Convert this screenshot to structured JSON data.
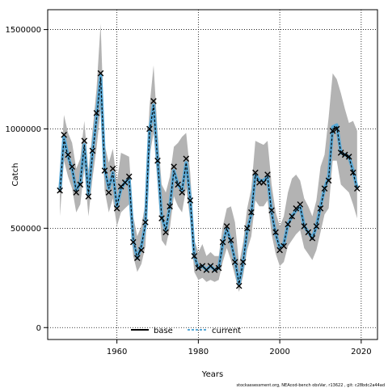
{
  "chart_data": {
    "type": "line",
    "title": "",
    "xlabel": "Years",
    "ylabel": "Catch",
    "xlim": [
      1943,
      2024
    ],
    "ylim": [
      -60000,
      1600000
    ],
    "x_ticks": [
      1960,
      1980,
      2000,
      2020
    ],
    "y_ticks": [
      0,
      500000,
      1000000,
      1500000
    ],
    "y_tick_labels": [
      "0",
      "500000",
      "1000000",
      "1500000"
    ],
    "grid": true,
    "legend": {
      "position": "bottom-center",
      "entries": [
        {
          "label": "base",
          "color": "#000000",
          "style": "solid"
        },
        {
          "label": "current",
          "color": "#5aa9d6",
          "style": "dashed"
        }
      ]
    },
    "colors": {
      "band": "#b3b3b3",
      "base": "#000000",
      "current": "#5aa9d6",
      "observed": "#000000"
    },
    "x": [
      1946,
      1947,
      1948,
      1949,
      1950,
      1951,
      1952,
      1953,
      1954,
      1955,
      1956,
      1957,
      1958,
      1959,
      1960,
      1961,
      1962,
      1963,
      1964,
      1965,
      1966,
      1967,
      1968,
      1969,
      1970,
      1971,
      1972,
      1973,
      1974,
      1975,
      1976,
      1977,
      1978,
      1979,
      1980,
      1981,
      1982,
      1983,
      1984,
      1985,
      1986,
      1987,
      1988,
      1989,
      1990,
      1991,
      1992,
      1993,
      1994,
      1995,
      1996,
      1997,
      1998,
      1999,
      2000,
      2001,
      2002,
      2003,
      2004,
      2005,
      2006,
      2007,
      2008,
      2009,
      2010,
      2011,
      2012,
      2013,
      2014,
      2015,
      2016,
      2017,
      2018,
      2019
    ],
    "series": [
      {
        "name": "base",
        "values": [
          680000,
          950000,
          860000,
          800000,
          690000,
          730000,
          920000,
          670000,
          870000,
          1050000,
          1260000,
          800000,
          700000,
          780000,
          610000,
          700000,
          730000,
          750000,
          450000,
          350000,
          410000,
          520000,
          980000,
          1120000,
          840000,
          560000,
          490000,
          610000,
          790000,
          720000,
          690000,
          830000,
          650000,
          360000,
          300000,
          310000,
          290000,
          310000,
          290000,
          300000,
          420000,
          500000,
          430000,
          340000,
          220000,
          330000,
          490000,
          570000,
          770000,
          730000,
          730000,
          760000,
          580000,
          470000,
          400000,
          420000,
          520000,
          550000,
          590000,
          610000,
          510000,
          480000,
          440000,
          510000,
          600000,
          700000,
          750000,
          1000000,
          1010000,
          880000,
          870000,
          860000,
          780000,
          700000
        ],
        "lower": [
          560000,
          840000,
          760000,
          700000,
          580000,
          620000,
          800000,
          560000,
          750000,
          900000,
          1100000,
          690000,
          580000,
          650000,
          510000,
          580000,
          600000,
          620000,
          360000,
          280000,
          320000,
          410000,
          860000,
          980000,
          720000,
          440000,
          410000,
          500000,
          660000,
          610000,
          580000,
          700000,
          540000,
          280000,
          240000,
          250000,
          230000,
          240000,
          230000,
          240000,
          330000,
          400000,
          340000,
          260000,
          180000,
          260000,
          390000,
          460000,
          640000,
          610000,
          610000,
          640000,
          470000,
          370000,
          310000,
          330000,
          410000,
          440000,
          470000,
          490000,
          400000,
          370000,
          340000,
          390000,
          480000,
          570000,
          600000,
          840000,
          840000,
          720000,
          700000,
          680000,
          620000,
          550000
        ],
        "upper": [
          720000,
          1070000,
          980000,
          930000,
          800000,
          850000,
          1040000,
          790000,
          990000,
          1200000,
          1530000,
          920000,
          830000,
          900000,
          730000,
          880000,
          870000,
          860000,
          560000,
          460000,
          510000,
          630000,
          1110000,
          1320000,
          980000,
          720000,
          680000,
          760000,
          910000,
          930000,
          960000,
          980000,
          780000,
          440000,
          380000,
          420000,
          360000,
          380000,
          360000,
          360000,
          510000,
          600000,
          610000,
          530000,
          320000,
          430000,
          600000,
          700000,
          940000,
          930000,
          920000,
          940000,
          720000,
          580000,
          510000,
          560000,
          680000,
          750000,
          770000,
          740000,
          650000,
          610000,
          560000,
          640000,
          810000,
          870000,
          1060000,
          1280000,
          1250000,
          1180000,
          1100000,
          1030000,
          1040000,
          990000
        ]
      },
      {
        "name": "current",
        "values": [
          690000,
          960000,
          860000,
          800000,
          690000,
          730000,
          920000,
          670000,
          880000,
          1060000,
          1270000,
          800000,
          700000,
          780000,
          610000,
          700000,
          730000,
          750000,
          440000,
          350000,
          410000,
          520000,
          990000,
          1120000,
          840000,
          560000,
          490000,
          610000,
          790000,
          720000,
          690000,
          830000,
          650000,
          360000,
          300000,
          310000,
          290000,
          310000,
          290000,
          300000,
          420000,
          500000,
          430000,
          340000,
          220000,
          330000,
          490000,
          570000,
          770000,
          740000,
          740000,
          760000,
          580000,
          470000,
          400000,
          420000,
          520000,
          560000,
          590000,
          610000,
          510000,
          480000,
          450000,
          510000,
          610000,
          700000,
          760000,
          1010000,
          1020000,
          880000,
          870000,
          860000,
          790000,
          700000
        ]
      },
      {
        "name": "observed",
        "values": [
          690000,
          970000,
          870000,
          810000,
          680000,
          720000,
          940000,
          660000,
          890000,
          1080000,
          1280000,
          790000,
          680000,
          800000,
          600000,
          710000,
          730000,
          760000,
          430000,
          350000,
          390000,
          530000,
          1000000,
          1140000,
          840000,
          550000,
          480000,
          610000,
          810000,
          720000,
          680000,
          850000,
          640000,
          360000,
          300000,
          310000,
          290000,
          310000,
          290000,
          300000,
          430000,
          510000,
          440000,
          330000,
          210000,
          330000,
          500000,
          580000,
          780000,
          730000,
          730000,
          770000,
          590000,
          480000,
          390000,
          410000,
          520000,
          560000,
          600000,
          620000,
          510000,
          480000,
          450000,
          510000,
          600000,
          700000,
          740000,
          990000,
          1000000,
          880000,
          870000,
          860000,
          780000,
          700000
        ]
      }
    ]
  },
  "footnote": "stockassessment.org, NEAcod-bench  obsVar,  r13622 ,  git: c28bdc2a44ad"
}
